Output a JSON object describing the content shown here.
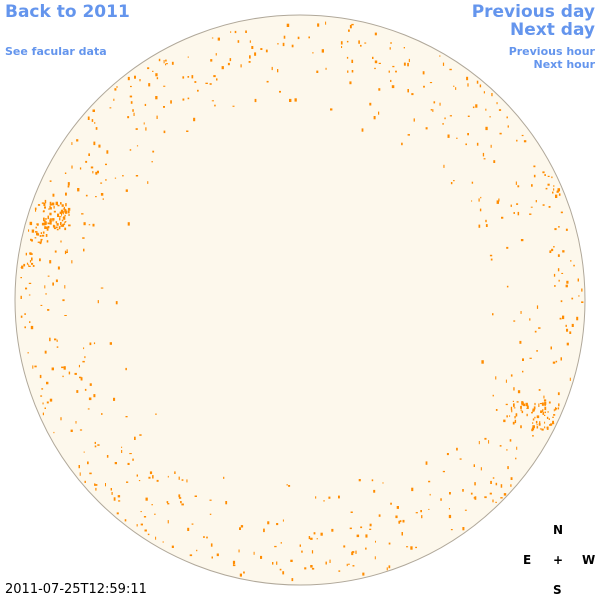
{
  "nav": {
    "back_to_year": "Back to 2011",
    "see_facular_data": "See facular data",
    "previous_day": "Previous day",
    "next_day": "Next day",
    "previous_hour": "Previous hour",
    "next_hour": "Next hour"
  },
  "compass": {
    "north": "N",
    "south": "S",
    "east": "E",
    "west": "W",
    "center": "+"
  },
  "timestamp": "2011-07-25T12:59:11",
  "colors": {
    "page_background": "#ffffff",
    "disk_fill": "#fdf8ec",
    "disk_outline": "#b0a89a",
    "facula": "#ff8c00",
    "link": "#6495ed"
  }
}
